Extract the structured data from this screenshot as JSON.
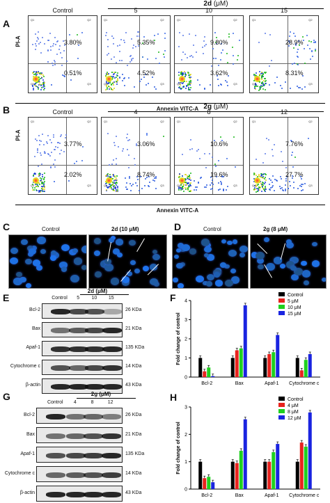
{
  "panelA": {
    "letter": "A",
    "compound": "2d",
    "unit": "(μM)",
    "yaxis": "PI-A",
    "xaxis": "Annexin VITC-A",
    "plots": [
      {
        "title": "Control",
        "q2": "3.80%",
        "q4": "0.51%"
      },
      {
        "title": "5",
        "q2": "5.35%",
        "q4": "4.52%"
      },
      {
        "title": "10",
        "q2": "9.80%",
        "q4": "3.62%"
      },
      {
        "title": "15",
        "q2": "28.9%",
        "q4": "8.31%"
      }
    ]
  },
  "panelB": {
    "letter": "B",
    "compound": "2g",
    "unit": "(μM)",
    "yaxis": "PI-A",
    "xaxis": "Annexin VITC-A",
    "plots": [
      {
        "title": "Control",
        "q2": "3.77%",
        "q4": "2.02%"
      },
      {
        "title": "4",
        "q2": "3.06%",
        "q4": "8.74%"
      },
      {
        "title": "8",
        "q2": "10.6%",
        "q4": "19.6%"
      },
      {
        "title": "12",
        "q2": "7.76%",
        "q4": "27.7%"
      }
    ]
  },
  "panelC": {
    "letter": "C",
    "left": "Control",
    "right": "2d (10 μM)"
  },
  "panelD": {
    "letter": "D",
    "left": "Control",
    "right": "2g (8 μM)"
  },
  "panelE": {
    "letter": "E",
    "compound": "2d (μM)",
    "lanes": [
      "Control",
      "5",
      "10",
      "15"
    ],
    "proteins": [
      "Bcl-2",
      "Bax",
      "Apaf-1",
      "Cytochrome c",
      "β-actin"
    ],
    "sizes": [
      "26 KDa",
      "21 KDa",
      "135 KDa",
      "14 KDa",
      "43 KDa"
    ]
  },
  "panelG": {
    "letter": "G",
    "compound": "2g (μM)",
    "lanes": [
      "Control",
      "4",
      "8",
      "12"
    ],
    "proteins": [
      "Bcl-2",
      "Bax",
      "Apaf-1",
      "Cytochrome c",
      "β-actin"
    ],
    "sizes": [
      "26 KDa",
      "21 KDa",
      "135 KDa",
      "14 KDa",
      "43 KDa"
    ]
  },
  "chart_data": [
    {
      "panel": "F",
      "type": "bar",
      "ylabel": "Fold change of control",
      "categories": [
        "Bcl-2",
        "Bax",
        "Apaf-1",
        "Cytochrome c"
      ],
      "ylim": [
        0,
        4
      ],
      "yticks": [
        0,
        1,
        2,
        3,
        4
      ],
      "series": [
        {
          "name": "Control",
          "color": "#000000",
          "values": [
            1.0,
            1.0,
            1.0,
            1.0
          ]
        },
        {
          "name": "5 μM",
          "color": "#e8231e",
          "values": [
            0.3,
            1.4,
            1.2,
            0.35
          ]
        },
        {
          "name": "10 μM",
          "color": "#1fd11f",
          "values": [
            0.5,
            1.5,
            1.3,
            0.9
          ]
        },
        {
          "name": "15 μM",
          "color": "#1a24e0",
          "values": [
            0.05,
            3.75,
            2.2,
            1.2
          ]
        }
      ]
    },
    {
      "panel": "H",
      "type": "bar",
      "ylabel": "Fold change of control",
      "categories": [
        "Bcl-2",
        "Bax",
        "Apaf-1",
        "Cytochrome c"
      ],
      "ylim": [
        0,
        3
      ],
      "yticks": [
        0,
        1,
        2,
        3
      ],
      "series": [
        {
          "name": "Control",
          "color": "#000000",
          "values": [
            1.0,
            1.0,
            1.0,
            1.0
          ]
        },
        {
          "name": "4 μM",
          "color": "#e8231e",
          "values": [
            0.4,
            0.95,
            1.0,
            1.7
          ]
        },
        {
          "name": "8 μM",
          "color": "#1fd11f",
          "values": [
            0.45,
            1.4,
            1.35,
            1.55
          ]
        },
        {
          "name": "12 μM",
          "color": "#1a24e0",
          "values": [
            0.25,
            2.55,
            1.65,
            2.8
          ]
        }
      ]
    }
  ]
}
